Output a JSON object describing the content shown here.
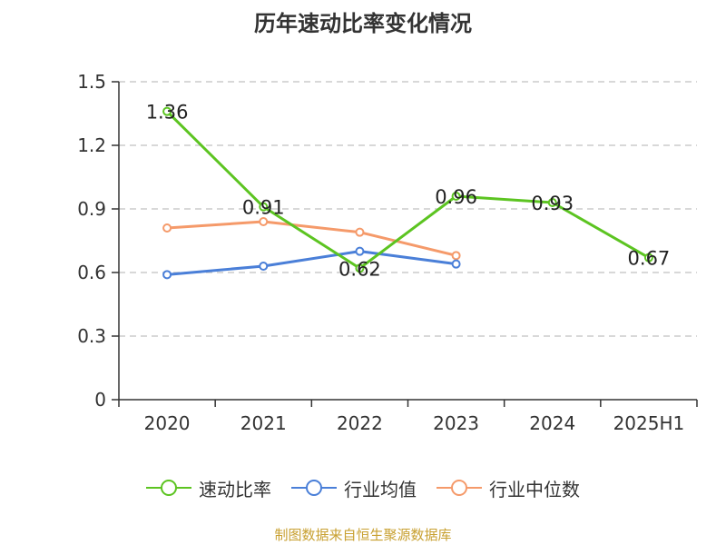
{
  "chart_data": {
    "type": "line",
    "title": "历年速动比率变化情况",
    "categories": [
      "2020",
      "2021",
      "2022",
      "2023",
      "2024",
      "2025H1"
    ],
    "ylim": [
      0,
      1.5
    ],
    "yticks": [
      "0",
      "0.3",
      "0.6",
      "0.9",
      "1.2",
      "1.5"
    ],
    "ytick_values": [
      0,
      0.3,
      0.6,
      0.9,
      1.2,
      1.5
    ],
    "grid": true,
    "legend_position": "bottom",
    "series": [
      {
        "name": "速动比率",
        "color": "#5cc421",
        "values": [
          1.36,
          0.91,
          0.62,
          0.96,
          0.93,
          0.67
        ],
        "labels": [
          "1.36",
          "0.91",
          "0.62",
          "0.96",
          "0.93",
          "0.67"
        ]
      },
      {
        "name": "行业均值",
        "color": "#4a7fd8",
        "values": [
          0.59,
          0.63,
          0.7,
          0.64,
          null,
          null
        ]
      },
      {
        "name": "行业中位数",
        "color": "#f59a6a",
        "values": [
          0.81,
          0.84,
          0.79,
          0.68,
          null,
          null
        ]
      }
    ],
    "source": "制图数据来自恒生聚源数据库"
  }
}
